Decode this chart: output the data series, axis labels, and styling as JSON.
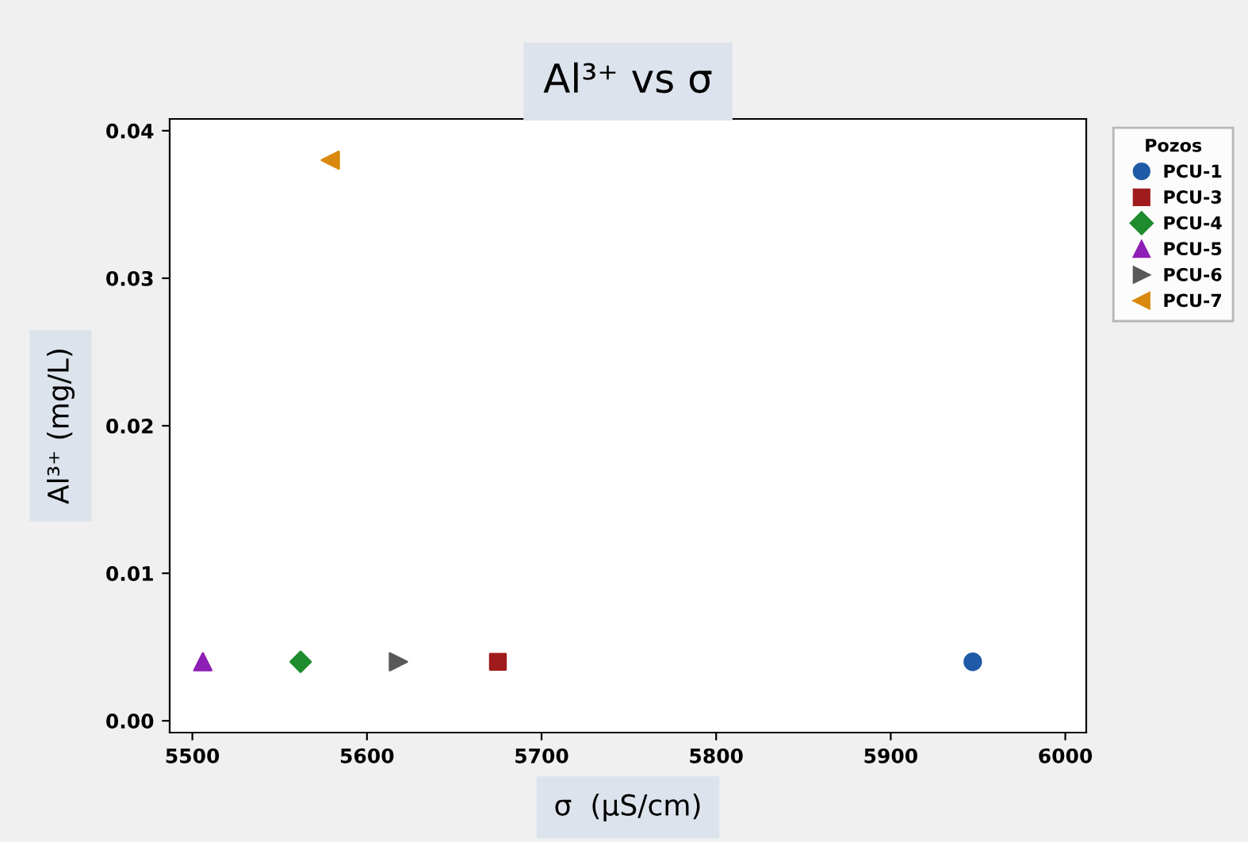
{
  "chart_data": {
    "type": "scatter",
    "title": "Al³⁺ vs σ",
    "xlabel": "σ  (µS/cm)",
    "ylabel": "Al³⁺ (mg/L)",
    "legend_title": "Pozos",
    "legend": "top right",
    "xlim": [
      5487,
      6012
    ],
    "xticks": [
      5500,
      5600,
      5700,
      5800,
      5900,
      6000
    ],
    "ylim": [
      -0.0008,
      0.0408
    ],
    "yticks": [
      {
        "value": 0,
        "label": "0.00"
      },
      {
        "value": 0.01,
        "label": "0.01"
      },
      {
        "value": 0.02,
        "label": "0.02"
      },
      {
        "value": 0.03,
        "label": "0.03"
      },
      {
        "value": 0.04,
        "label": "0.04"
      }
    ],
    "grid": false,
    "series": [
      {
        "name": "PCU-1",
        "color": "#1f5aa6",
        "marker": "circle",
        "x": [
          5947
        ],
        "values": [
          0.004
        ]
      },
      {
        "name": "PCU-3",
        "color": "#a01c1c",
        "marker": "square",
        "x": [
          5675
        ],
        "values": [
          0.004
        ]
      },
      {
        "name": "PCU-4",
        "color": "#1e8c2e",
        "marker": "diamond",
        "x": [
          5562
        ],
        "values": [
          0.004
        ]
      },
      {
        "name": "PCU-5",
        "color": "#8e1fb5",
        "marker": "triangle",
        "x": [
          5506
        ],
        "values": [
          0.004
        ]
      },
      {
        "name": "PCU-6",
        "color": "#595959",
        "marker": "triangle-right",
        "x": [
          5618
        ],
        "values": [
          0.004
        ]
      },
      {
        "name": "PCU-7",
        "color": "#d9890e",
        "marker": "triangle-left",
        "x": [
          5579
        ],
        "values": [
          0.038
        ]
      }
    ]
  }
}
